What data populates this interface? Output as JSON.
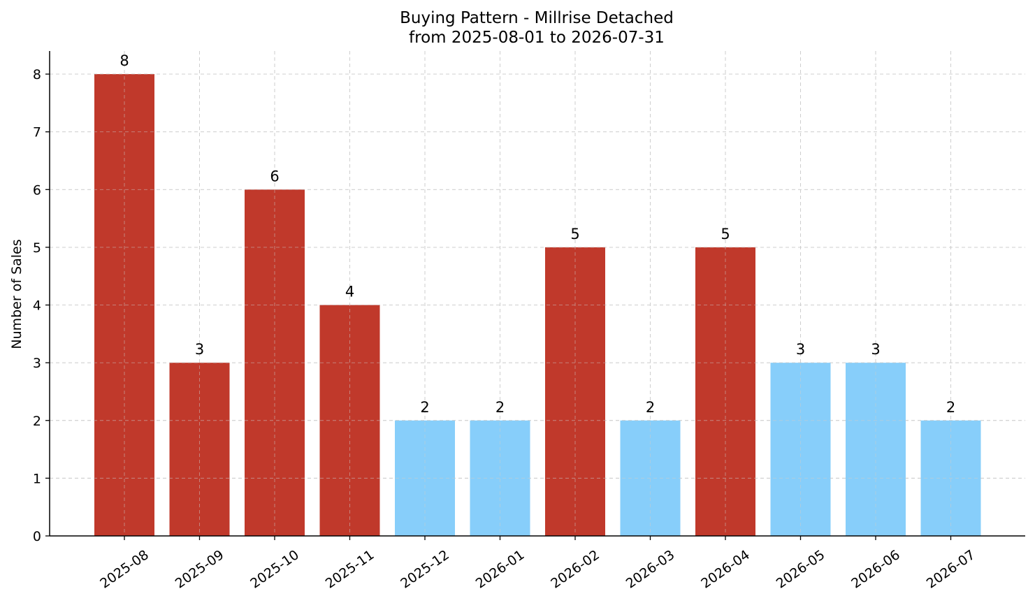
{
  "chart_data": {
    "type": "bar",
    "title": "Buying Pattern - Millrise Detached",
    "subtitle": "from 2025-08-01 to 2026-07-31",
    "xlabel": "",
    "ylabel": "Number of Sales",
    "categories": [
      "2025-08",
      "2025-09",
      "2025-10",
      "2025-11",
      "2025-12",
      "2026-01",
      "2026-02",
      "2026-03",
      "2026-04",
      "2026-05",
      "2026-06",
      "2026-07"
    ],
    "values": [
      8,
      3,
      6,
      4,
      2,
      2,
      5,
      2,
      5,
      3,
      3,
      2
    ],
    "bar_colors": [
      "#c0392b",
      "#c0392b",
      "#c0392b",
      "#c0392b",
      "#87cefa",
      "#87cefa",
      "#c0392b",
      "#87cefa",
      "#c0392b",
      "#87cefa",
      "#87cefa",
      "#87cefa"
    ],
    "ylim": [
      0,
      8.4
    ],
    "yticks": [
      0,
      1,
      2,
      3,
      4,
      5,
      6,
      7,
      8
    ],
    "grid": true,
    "legend": "none"
  }
}
